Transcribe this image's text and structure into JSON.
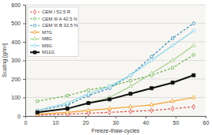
{
  "chart_data": {
    "type": "line",
    "x_label": "Freeze-thaw-cycles",
    "y_label": "Scaling [g/m²]",
    "x": [
      4,
      14,
      21,
      28,
      35,
      42,
      49,
      56
    ],
    "xlim": [
      0,
      60
    ],
    "xticks": [
      0,
      10,
      20,
      30,
      40,
      50,
      60
    ],
    "ylim": [
      0,
      600
    ],
    "yticks": [
      0,
      100,
      200,
      300,
      400,
      500,
      600
    ],
    "grid": true,
    "legend": "top-left",
    "series": [
      {
        "name": "CEM I 52,5 R",
        "color": "#d9534f",
        "marker": "diamond",
        "line_style": "dashed",
        "values": [
          5,
          10,
          15,
          20,
          25,
          30,
          40,
          50
        ]
      },
      {
        "name": "CEM III A 42,5 N",
        "color": "#6ab04c",
        "marker": "circle",
        "line_style": "dashed",
        "values": [
          80,
          110,
          140,
          160,
          190,
          220,
          260,
          330
        ]
      },
      {
        "name": "CEM III B 32,5 N",
        "color": "#3a8fb7",
        "marker": "circle",
        "line_style": "dashed",
        "values": [
          30,
          60,
          110,
          150,
          220,
          320,
          420,
          500
        ]
      },
      {
        "name": "M7G",
        "color": "#f0a030",
        "marker": "triangle",
        "line_style": "solid",
        "values": [
          10,
          20,
          30,
          40,
          50,
          60,
          80,
          100
        ]
      },
      {
        "name": "M8G",
        "color": "#a8d08d",
        "marker": "triangle",
        "line_style": "solid",
        "values": [
          20,
          40,
          70,
          100,
          160,
          230,
          300,
          380
        ]
      },
      {
        "name": "M9G",
        "color": "#8ad4e8",
        "marker": "circle",
        "line_style": "solid",
        "values": [
          30,
          70,
          120,
          160,
          220,
          300,
          380,
          460
        ]
      },
      {
        "name": "M11G",
        "color": "#111111",
        "marker": "square",
        "line_style": "solid",
        "values": [
          20,
          40,
          70,
          90,
          120,
          150,
          180,
          220
        ]
      }
    ]
  }
}
